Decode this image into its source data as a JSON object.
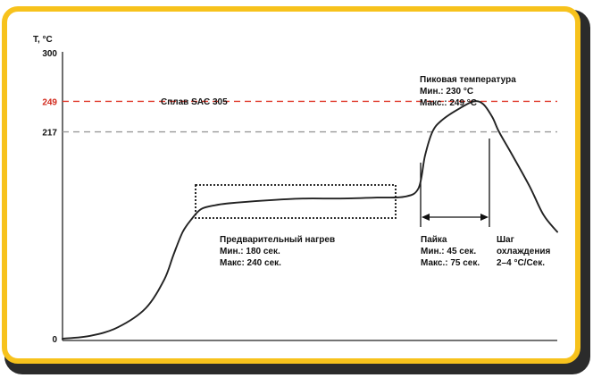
{
  "chart_data": {
    "type": "line",
    "title": "",
    "xlabel": "",
    "ylabel": "T, °C",
    "ylim": [
      0,
      300
    ],
    "yticks": [
      {
        "value": 300,
        "label": "300",
        "color": "#111111"
      },
      {
        "value": 249,
        "label": "249",
        "color": "#d2291c"
      },
      {
        "value": 217,
        "label": "217",
        "color": "#111111"
      },
      {
        "value": 0,
        "label": "0",
        "color": "#111111"
      }
    ],
    "reference_lines": [
      {
        "value": 249,
        "color": "#e0382b",
        "style": "dashed"
      },
      {
        "value": 217,
        "color": "#9a9a9a",
        "style": "dashed"
      }
    ],
    "series": [
      {
        "color": "#222222",
        "points": [
          [
            0,
            0
          ],
          [
            30,
            3
          ],
          [
            60,
            12
          ],
          [
            90,
            32
          ],
          [
            110,
            62
          ],
          [
            120,
            88
          ],
          [
            130,
            112
          ],
          [
            140,
            126
          ],
          [
            150,
            136
          ],
          [
            165,
            140
          ],
          [
            180,
            142
          ],
          [
            220,
            145
          ],
          [
            260,
            147
          ],
          [
            300,
            147
          ],
          [
            340,
            148
          ],
          [
            370,
            149
          ],
          [
            385,
            158
          ],
          [
            392,
            192
          ],
          [
            400,
            217
          ],
          [
            410,
            229
          ],
          [
            430,
            242
          ],
          [
            445,
            249
          ],
          [
            455,
            246
          ],
          [
            465,
            232
          ],
          [
            472,
            217
          ],
          [
            485,
            195
          ],
          [
            505,
            160
          ],
          [
            520,
            130
          ],
          [
            535,
            112
          ]
        ]
      }
    ],
    "annotations": {
      "alloy": "Сплав SAC 305",
      "peak": [
        "Пиковая температура",
        "Мин.: 230 °C",
        "Макс.: 249 °C"
      ],
      "preheat": [
        "Предварительный нагрев",
        "Мин.: 180 сек.",
        "Макс: 240 сек."
      ],
      "soldering": [
        "Пайка",
        "Мин.: 45 сек.",
        "Макс.: 75 сек."
      ],
      "cooling": [
        "Шаг",
        "охлаждения",
        "2–4 °C/Сек."
      ]
    }
  },
  "colors": {
    "frame": "#f7c21c",
    "curve": "#222222",
    "dashed_peak": "#e0382b",
    "dashed_liquidus": "#9a9a9a"
  }
}
